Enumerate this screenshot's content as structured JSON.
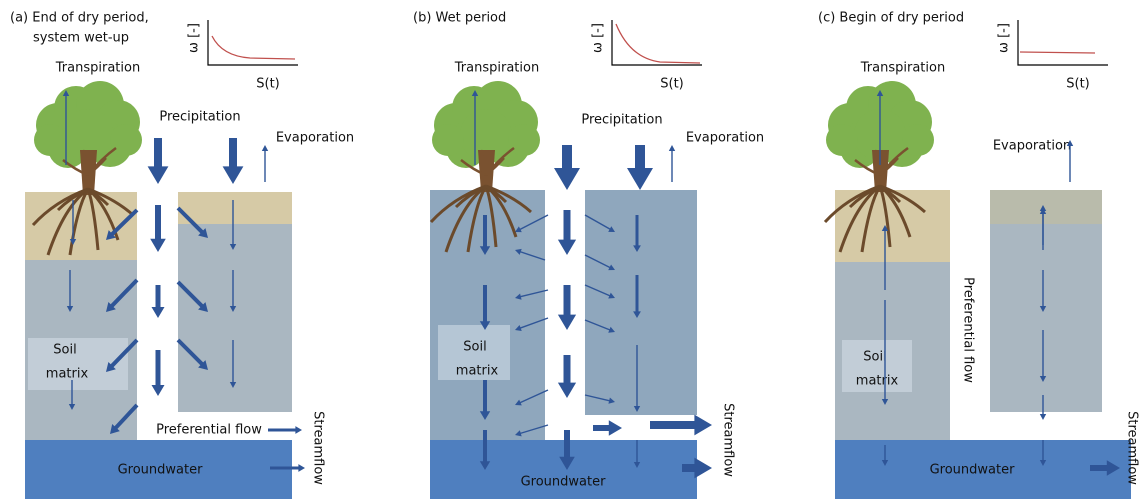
{
  "panels": [
    {
      "title": [
        "(a) End of dry period,",
        "system wet-up"
      ],
      "y_axis_label": "ω [-]",
      "x_axis_label": "S(t)",
      "transpiration": "Transpiration",
      "precipitation": "Precipitation",
      "evaporation": "Evaporation",
      "soil_matrix": [
        "Soil",
        "matrix"
      ],
      "preferential_flow": "Preferential flow",
      "groundwater": "Groundwater",
      "streamflow": "Streamflow"
    },
    {
      "title": [
        "(b) Wet period"
      ],
      "y_axis_label": "ω [-]",
      "x_axis_label": "S(t)",
      "transpiration": "Transpiration",
      "precipitation": "Precipitation",
      "evaporation": "Evaporation",
      "soil_matrix": [
        "Soil",
        "matrix"
      ],
      "groundwater": "Groundwater",
      "streamflow": "Streamflow"
    },
    {
      "title": [
        "(c) Begin of dry period"
      ],
      "y_axis_label": "ω [-]",
      "x_axis_label": "S(t)",
      "transpiration": "Transpiration",
      "evaporation": "Evaporation",
      "preferential_flow": "Preferential flow",
      "soil_matrix": [
        "Soil",
        "matrix"
      ],
      "groundwater": "Groundwater",
      "streamflow": "Streamflow"
    }
  ]
}
